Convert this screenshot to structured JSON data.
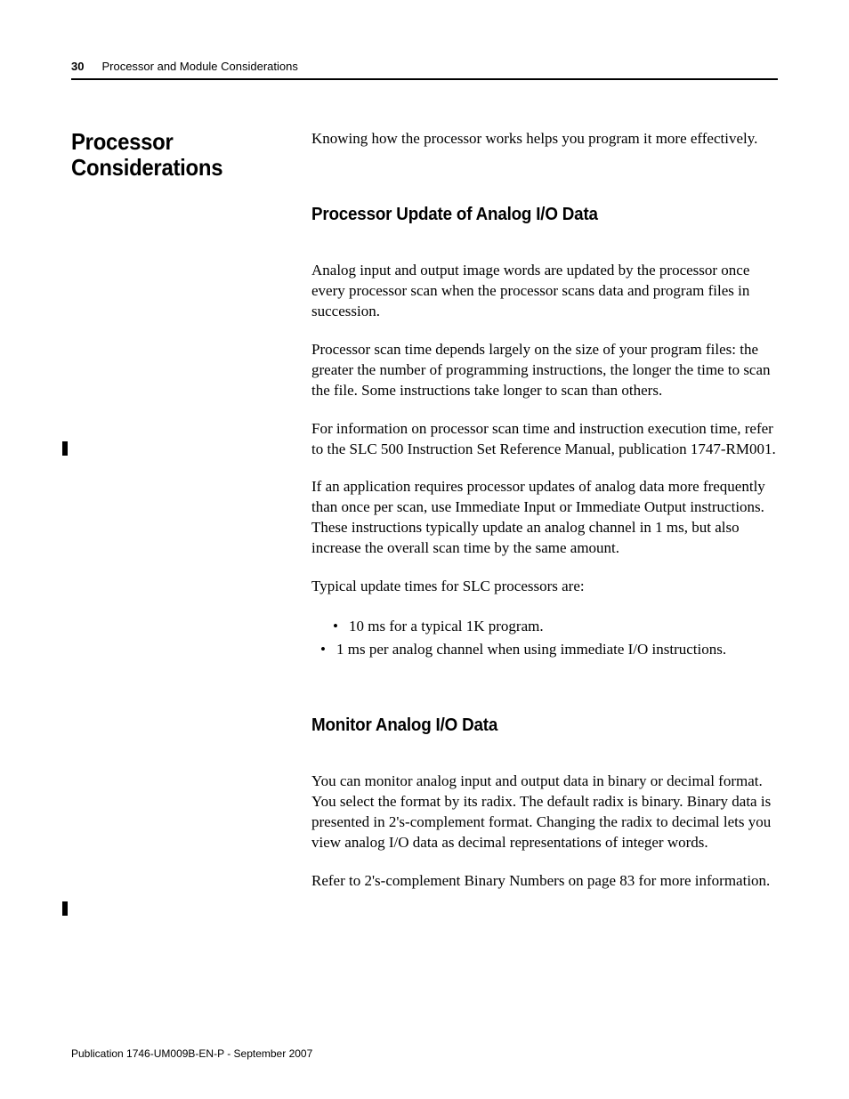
{
  "header": {
    "page_number": "30",
    "title": "Processor and Module Considerations"
  },
  "section": {
    "heading": "Processor Considerations",
    "intro": "Knowing how the processor works helps you program it more effectively."
  },
  "subsection1": {
    "heading": "Processor Update of Analog I/O Data",
    "p1": "Analog input and output image words are updated by the processor once every processor scan when the processor scans data and program files in succession.",
    "p2": "Processor scan time depends largely on the size of your program files: the greater the number of programming instructions, the longer the time to scan the file. Some instructions take longer to scan than others.",
    "p3": "For information on processor scan time and instruction execution time, refer to the SLC 500 Instruction Set Reference Manual, publication 1747-RM001.",
    "p4": "If an application requires processor updates of analog data more frequently than once per scan, use Immediate Input or Immediate Output instructions. These instructions typically update an analog channel in 1 ms, but also increase the overall scan time by the same amount.",
    "p5": "Typical update times for SLC processors are:",
    "bullets": [
      "10 ms for a typical 1K program.",
      "1 ms per analog channel when using immediate I/O instructions."
    ]
  },
  "subsection2": {
    "heading": "Monitor Analog I/O Data",
    "p1": "You can monitor analog input and output data in binary or decimal format. You select the format by its radix. The default radix is binary. Binary data is presented in 2's-complement format. Changing the radix to decimal lets you view analog I/O data as decimal representations of integer words.",
    "p2": "Refer to 2's-complement Binary Numbers on page 83 for more information."
  },
  "footer": {
    "publication": "Publication 1746-UM009B-EN-P - September 2007"
  }
}
